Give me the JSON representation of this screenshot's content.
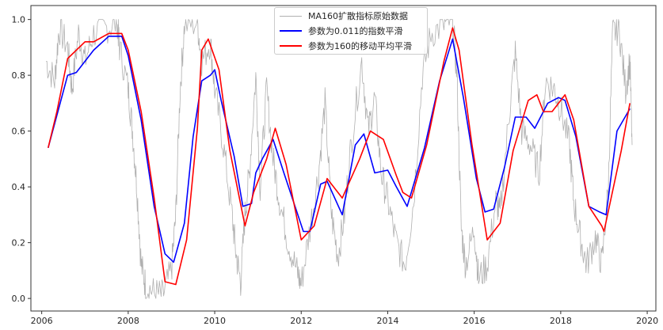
{
  "chart_data": {
    "type": "line",
    "title": "",
    "xlabel": "",
    "ylabel": "",
    "xlim": [
      2005.75,
      2020.2
    ],
    "ylim": [
      -0.045,
      1.05
    ],
    "x_ticks": [
      "2006",
      "2008",
      "2010",
      "2012",
      "2014",
      "2016",
      "2018",
      "2020"
    ],
    "y_ticks": [
      "0.0",
      "0.2",
      "0.4",
      "0.6",
      "0.8",
      "1.0"
    ],
    "grid": false,
    "legend_position": "top-center",
    "series": [
      {
        "name": "MA160扩散指标原始数据",
        "color": "#b0b0b0",
        "x": [
          2006.1,
          2006.3,
          2006.4,
          2006.6,
          2006.7,
          2006.85,
          2007.0,
          2007.2,
          2007.5,
          2007.75,
          2007.8,
          2008.0,
          2008.1,
          2008.2,
          2008.3,
          2008.4,
          2008.6,
          2008.8,
          2009.0,
          2009.1,
          2009.2,
          2009.3,
          2009.6,
          2009.7,
          2009.9,
          2010.0,
          2010.2,
          2010.4,
          2010.5,
          2010.6,
          2010.7,
          2010.8,
          2010.95,
          2011.05,
          2011.2,
          2011.35,
          2011.5,
          2011.7,
          2011.9,
          2012.0,
          2012.2,
          2012.4,
          2012.55,
          2012.7,
          2012.85,
          2013.0,
          2013.15,
          2013.4,
          2013.55,
          2013.7,
          2013.85,
          2014.0,
          2014.2,
          2014.4,
          2014.6,
          2014.8,
          2015.0,
          2015.3,
          2015.5,
          2015.6,
          2015.7,
          2015.8,
          2016.0,
          2016.1,
          2016.3,
          2016.5,
          2016.6,
          2016.8,
          2016.95,
          2017.1,
          2017.3,
          2017.5,
          2017.65,
          2017.85,
          2018.0,
          2018.2,
          2018.3,
          2018.45,
          2018.6,
          2018.8,
          2018.95,
          2019.1,
          2019.2,
          2019.35,
          2019.5,
          2019.6,
          2019.65
        ],
        "y": [
          0.85,
          0.78,
          0.97,
          0.9,
          0.75,
          0.95,
          0.85,
          0.95,
          0.97,
          0.99,
          0.9,
          0.75,
          0.6,
          0.4,
          0.12,
          0.05,
          0.02,
          0.01,
          0.1,
          0.3,
          0.75,
          0.98,
          0.99,
          0.85,
          0.92,
          0.75,
          0.55,
          0.3,
          0.15,
          0.06,
          0.3,
          0.45,
          0.8,
          0.4,
          0.75,
          0.5,
          0.35,
          0.2,
          0.1,
          0.05,
          0.25,
          0.45,
          0.7,
          0.3,
          0.15,
          0.3,
          0.55,
          0.85,
          0.6,
          0.72,
          0.45,
          0.35,
          0.2,
          0.12,
          0.35,
          0.8,
          0.95,
          0.98,
          1.0,
          0.8,
          0.25,
          0.12,
          0.25,
          0.07,
          0.12,
          0.35,
          0.3,
          0.65,
          0.88,
          0.6,
          0.55,
          0.45,
          0.78,
          0.75,
          0.68,
          0.55,
          0.35,
          0.22,
          0.12,
          0.22,
          0.12,
          0.4,
          0.95,
          0.97,
          0.75,
          0.85,
          0.55
        ]
      },
      {
        "name": "参数为0.011的指数平滑",
        "color": "#0000ff",
        "x": [
          2006.15,
          2006.6,
          2006.8,
          2007.2,
          2007.55,
          2007.85,
          2008.0,
          2008.3,
          2008.6,
          2008.85,
          2009.05,
          2009.3,
          2009.5,
          2009.7,
          2009.9,
          2010.0,
          2010.15,
          2010.45,
          2010.65,
          2010.85,
          2010.95,
          2011.1,
          2011.35,
          2011.6,
          2012.05,
          2012.2,
          2012.45,
          2012.6,
          2012.95,
          2013.25,
          2013.45,
          2013.7,
          2014.0,
          2014.2,
          2014.45,
          2014.85,
          2015.2,
          2015.5,
          2015.75,
          2016.05,
          2016.25,
          2016.45,
          2016.7,
          2016.95,
          2017.2,
          2017.4,
          2017.7,
          2017.95,
          2018.1,
          2018.35,
          2018.65,
          2018.9,
          2019.05,
          2019.3,
          2019.6
        ],
        "y": [
          0.54,
          0.8,
          0.81,
          0.89,
          0.94,
          0.94,
          0.87,
          0.64,
          0.33,
          0.16,
          0.13,
          0.27,
          0.58,
          0.78,
          0.8,
          0.82,
          0.71,
          0.51,
          0.33,
          0.34,
          0.45,
          0.5,
          0.57,
          0.45,
          0.24,
          0.24,
          0.41,
          0.42,
          0.3,
          0.55,
          0.59,
          0.45,
          0.46,
          0.4,
          0.33,
          0.54,
          0.78,
          0.93,
          0.72,
          0.43,
          0.31,
          0.32,
          0.47,
          0.65,
          0.65,
          0.61,
          0.7,
          0.72,
          0.71,
          0.58,
          0.33,
          0.31,
          0.3,
          0.6,
          0.68
        ]
      },
      {
        "name": "参数为160的移动平均平滑",
        "color": "#ff0000",
        "x": [
          2006.15,
          2006.35,
          2006.6,
          2007.0,
          2007.2,
          2007.55,
          2007.85,
          2008.0,
          2008.3,
          2008.6,
          2008.85,
          2009.1,
          2009.35,
          2009.6,
          2009.7,
          2009.85,
          2010.1,
          2010.35,
          2010.7,
          2010.9,
          2011.2,
          2011.4,
          2011.65,
          2012.0,
          2012.3,
          2012.6,
          2012.95,
          2013.35,
          2013.6,
          2013.9,
          2014.2,
          2014.35,
          2014.55,
          2014.9,
          2015.3,
          2015.5,
          2015.65,
          2015.95,
          2016.3,
          2016.6,
          2016.9,
          2017.25,
          2017.45,
          2017.6,
          2017.8,
          2018.1,
          2018.3,
          2018.65,
          2018.95,
          2019.0,
          2019.4,
          2019.6
        ],
        "y": [
          0.54,
          0.67,
          0.86,
          0.92,
          0.92,
          0.95,
          0.95,
          0.89,
          0.67,
          0.36,
          0.06,
          0.05,
          0.21,
          0.61,
          0.89,
          0.93,
          0.82,
          0.53,
          0.26,
          0.38,
          0.5,
          0.61,
          0.48,
          0.21,
          0.26,
          0.43,
          0.36,
          0.5,
          0.6,
          0.57,
          0.44,
          0.38,
          0.36,
          0.55,
          0.85,
          0.97,
          0.89,
          0.55,
          0.21,
          0.27,
          0.53,
          0.71,
          0.73,
          0.67,
          0.67,
          0.73,
          0.64,
          0.33,
          0.26,
          0.24,
          0.53,
          0.7
        ]
      }
    ]
  }
}
